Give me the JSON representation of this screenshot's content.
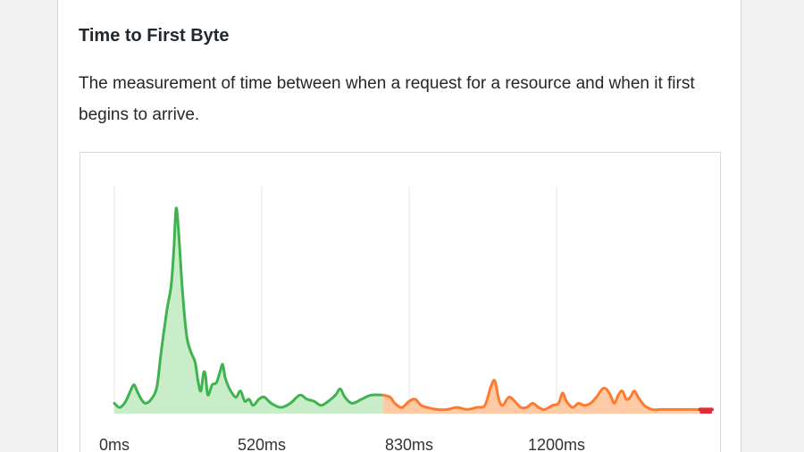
{
  "card": {
    "title": "Time to First Byte",
    "description": "The measurement of time between when a request for a resource and when it first begins to arrive."
  },
  "colors": {
    "good_line": "#3fb34f",
    "good_fill": "#c9ecc9",
    "needs_improvement_line": "#ff7a2f",
    "needs_improvement_fill": "#ffcaa6",
    "poor_line": "#e02b3b",
    "grid": "#e6e6e6"
  },
  "chart_data": {
    "type": "area",
    "title": "",
    "xlabel": "",
    "ylabel": "",
    "x_ticks": [
      {
        "label": "0ms",
        "value": 0
      },
      {
        "label": "520ms",
        "value": 520
      },
      {
        "label": "830ms",
        "value": 830
      },
      {
        "label": "1200ms",
        "value": 1200
      }
    ],
    "grid": "vertical",
    "thresholds": {
      "good_max": 800,
      "poor_min": 1800
    },
    "y_unit": "relative density (peak = 100)",
    "series": [
      {
        "category": "good",
        "points": [
          [
            0,
            5
          ],
          [
            20,
            3
          ],
          [
            40,
            6
          ],
          [
            60,
            12
          ],
          [
            70,
            14
          ],
          [
            80,
            11
          ],
          [
            95,
            7
          ],
          [
            110,
            5
          ],
          [
            130,
            7
          ],
          [
            150,
            13
          ],
          [
            165,
            30
          ],
          [
            185,
            50
          ],
          [
            200,
            62
          ],
          [
            210,
            80
          ],
          [
            218,
            100
          ],
          [
            228,
            86
          ],
          [
            240,
            60
          ],
          [
            255,
            38
          ],
          [
            270,
            30
          ],
          [
            285,
            25
          ],
          [
            295,
            16
          ],
          [
            305,
            11
          ],
          [
            315,
            20
          ],
          [
            322,
            18
          ],
          [
            330,
            9
          ],
          [
            345,
            14
          ],
          [
            360,
            15
          ],
          [
            372,
            20
          ],
          [
            382,
            24
          ],
          [
            390,
            18
          ],
          [
            400,
            14
          ],
          [
            415,
            10
          ],
          [
            430,
            8
          ],
          [
            445,
            11
          ],
          [
            460,
            6
          ],
          [
            475,
            7
          ],
          [
            490,
            4
          ],
          [
            510,
            7
          ],
          [
            525,
            8
          ],
          [
            540,
            5
          ],
          [
            560,
            3
          ],
          [
            580,
            5
          ],
          [
            600,
            9
          ],
          [
            615,
            7
          ],
          [
            630,
            6
          ],
          [
            645,
            4
          ],
          [
            660,
            6
          ],
          [
            675,
            9
          ],
          [
            685,
            12
          ],
          [
            695,
            8
          ],
          [
            710,
            5
          ],
          [
            730,
            7
          ],
          [
            750,
            9
          ],
          [
            775,
            9
          ]
        ]
      },
      {
        "category": "needs_improvement",
        "points": [
          [
            775,
            9
          ],
          [
            790,
            8
          ],
          [
            800,
            5
          ],
          [
            815,
            3
          ],
          [
            830,
            6
          ],
          [
            845,
            7
          ],
          [
            860,
            4
          ],
          [
            875,
            3
          ],
          [
            900,
            2
          ],
          [
            925,
            2
          ],
          [
            950,
            3
          ],
          [
            975,
            2
          ],
          [
            1000,
            3
          ],
          [
            1020,
            4
          ],
          [
            1035,
            13
          ],
          [
            1045,
            16
          ],
          [
            1055,
            7
          ],
          [
            1065,
            4
          ],
          [
            1080,
            8
          ],
          [
            1095,
            6
          ],
          [
            1110,
            3
          ],
          [
            1125,
            3
          ],
          [
            1140,
            5
          ],
          [
            1155,
            3
          ],
          [
            1170,
            2
          ],
          [
            1190,
            4
          ],
          [
            1205,
            5
          ],
          [
            1215,
            10
          ],
          [
            1225,
            6
          ],
          [
            1240,
            3
          ],
          [
            1255,
            5
          ],
          [
            1270,
            4
          ],
          [
            1285,
            5
          ],
          [
            1300,
            8
          ],
          [
            1315,
            12
          ],
          [
            1325,
            12
          ],
          [
            1335,
            9
          ],
          [
            1345,
            5
          ],
          [
            1355,
            9
          ],
          [
            1365,
            11
          ],
          [
            1375,
            7
          ],
          [
            1385,
            8
          ],
          [
            1395,
            11
          ],
          [
            1405,
            8
          ],
          [
            1420,
            4
          ],
          [
            1440,
            2
          ],
          [
            1460,
            2
          ],
          [
            1480,
            2
          ],
          [
            1500,
            2
          ],
          [
            1520,
            2
          ],
          [
            1540,
            2
          ],
          [
            1560,
            2
          ]
        ]
      },
      {
        "category": "poor",
        "points": [
          [
            1560,
            2
          ],
          [
            1575,
            2
          ],
          [
            1590,
            2
          ]
        ]
      }
    ]
  }
}
